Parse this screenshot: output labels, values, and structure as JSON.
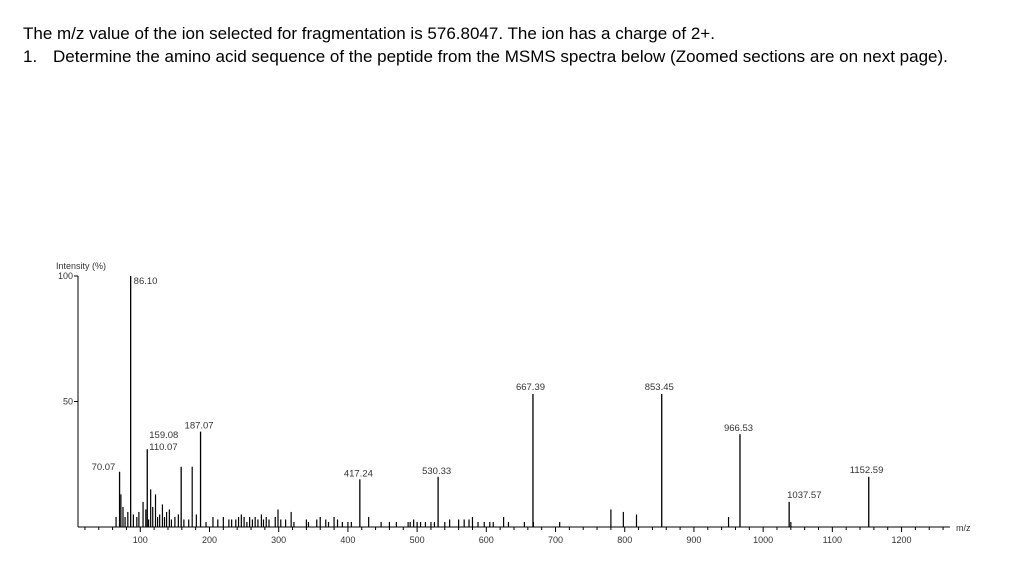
{
  "question": {
    "intro": "The m/z value of the ion selected for fragmentation is 576.8047. The ion has a charge of 2+.",
    "item_number": "1.",
    "item_text": "Determine the amino acid sequence of the peptide from the MSMS spectra below (Zoomed sections are on next page)."
  },
  "chart_data": {
    "type": "bar",
    "ylabel": "Intensity (%)",
    "xlabel": "m/z",
    "xlim": [
      10,
      1270
    ],
    "ylim": [
      0,
      100
    ],
    "x_ticks": [
      100,
      200,
      300,
      400,
      500,
      600,
      700,
      800,
      900,
      1000,
      1100,
      1200
    ],
    "y_ticks": [
      100,
      50
    ],
    "labeled_peaks": [
      {
        "mz": 70.07,
        "intensity": 22,
        "label": "70.07"
      },
      {
        "mz": 86.1,
        "intensity": 100,
        "label": "86.10"
      },
      {
        "mz": 110.07,
        "intensity": 31,
        "label": "110.07"
      },
      {
        "mz": 159.08,
        "intensity": 24,
        "label": "159.08"
      },
      {
        "mz": 187.07,
        "intensity": 38,
        "label": "187.07"
      },
      {
        "mz": 417.24,
        "intensity": 19,
        "label": "417.24"
      },
      {
        "mz": 530.33,
        "intensity": 20,
        "label": "530.33"
      },
      {
        "mz": 667.39,
        "intensity": 53,
        "label": "667.39"
      },
      {
        "mz": 853.45,
        "intensity": 53,
        "label": "853.45"
      },
      {
        "mz": 966.53,
        "intensity": 37,
        "label": "966.53"
      },
      {
        "mz": 1037.57,
        "intensity": 10,
        "label": "1037.57"
      },
      {
        "mz": 1152.59,
        "intensity": 20,
        "label": "1152.59"
      }
    ],
    "minor_peaks": [
      [
        65,
        4
      ],
      [
        72,
        13
      ],
      [
        75,
        8
      ],
      [
        78,
        4
      ],
      [
        82,
        6
      ],
      [
        90,
        5
      ],
      [
        95,
        4
      ],
      [
        98,
        6
      ],
      [
        104,
        10
      ],
      [
        108,
        7
      ],
      [
        112,
        3
      ],
      [
        115,
        15
      ],
      [
        118,
        8
      ],
      [
        122,
        13
      ],
      [
        125,
        4
      ],
      [
        128,
        5
      ],
      [
        132,
        9
      ],
      [
        135,
        4
      ],
      [
        138,
        6
      ],
      [
        142,
        7
      ],
      [
        145,
        3
      ],
      [
        150,
        4
      ],
      [
        155,
        5
      ],
      [
        163,
        3
      ],
      [
        170,
        3
      ],
      [
        175,
        24
      ],
      [
        181,
        5
      ],
      [
        195,
        2
      ],
      [
        205,
        4
      ],
      [
        212,
        3
      ],
      [
        220,
        4
      ],
      [
        228,
        3
      ],
      [
        232,
        3
      ],
      [
        238,
        3
      ],
      [
        242,
        4
      ],
      [
        246,
        5
      ],
      [
        250,
        4
      ],
      [
        254,
        2
      ],
      [
        258,
        4
      ],
      [
        262,
        3
      ],
      [
        266,
        4
      ],
      [
        270,
        3
      ],
      [
        275,
        5
      ],
      [
        278,
        3
      ],
      [
        282,
        4
      ],
      [
        286,
        3
      ],
      [
        295,
        4
      ],
      [
        299,
        7
      ],
      [
        303,
        3
      ],
      [
        310,
        3
      ],
      [
        318,
        6
      ],
      [
        322,
        2
      ],
      [
        340,
        3
      ],
      [
        343,
        2
      ],
      [
        355,
        3
      ],
      [
        360,
        4
      ],
      [
        368,
        3
      ],
      [
        372,
        2
      ],
      [
        380,
        4
      ],
      [
        385,
        3
      ],
      [
        392,
        2
      ],
      [
        400,
        2
      ],
      [
        405,
        2
      ],
      [
        430,
        4
      ],
      [
        448,
        2
      ],
      [
        460,
        2
      ],
      [
        470,
        2
      ],
      [
        487,
        2
      ],
      [
        490,
        2
      ],
      [
        495,
        3
      ],
      [
        500,
        2
      ],
      [
        505,
        2
      ],
      [
        512,
        2
      ],
      [
        520,
        2
      ],
      [
        525,
        2
      ],
      [
        540,
        2
      ],
      [
        547,
        3
      ],
      [
        560,
        3
      ],
      [
        568,
        3
      ],
      [
        575,
        3
      ],
      [
        580,
        4
      ],
      [
        588,
        2
      ],
      [
        597,
        2
      ],
      [
        605,
        2
      ],
      [
        610,
        2
      ],
      [
        625,
        4
      ],
      [
        632,
        2
      ],
      [
        655,
        2
      ],
      [
        668,
        2
      ],
      [
        706,
        2
      ],
      [
        780,
        7
      ],
      [
        798,
        6
      ],
      [
        817,
        5
      ],
      [
        950,
        4
      ],
      [
        1040,
        2
      ]
    ]
  }
}
